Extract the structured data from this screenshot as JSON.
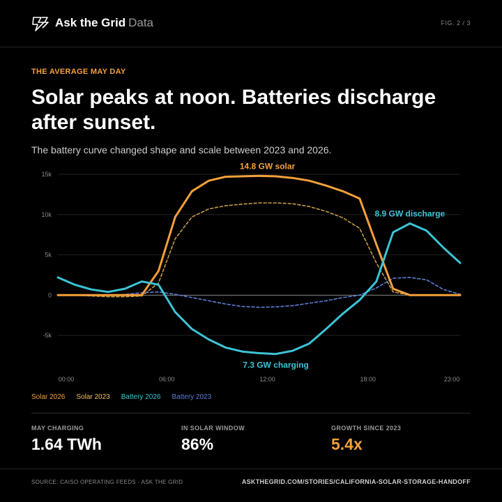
{
  "header": {
    "brand": "Ask the Grid",
    "brand_sub": "Data",
    "fig": "FIG. 2 / 3",
    "logo_icon": "lightning-bolt-icon"
  },
  "kicker": "THE AVERAGE MAY DAY",
  "title": "Solar peaks at noon. Batteries discharge after sunset.",
  "subtitle": "The battery curve changed shape and scale between 2023 and 2026.",
  "chart_data": {
    "type": "line",
    "xlabel": "",
    "ylabel": "",
    "x_ticks": [
      "00:00",
      "06:00",
      "12:00",
      "18:00",
      "23:00"
    ],
    "x_tick_hours": [
      0,
      6,
      12,
      18,
      23
    ],
    "y_ticks": [
      "15k",
      "10k",
      "5k",
      "0",
      "-5k"
    ],
    "y_tick_values": [
      15000,
      10000,
      5000,
      0,
      -5000
    ],
    "xlim": [
      0,
      23
    ],
    "ylim": [
      -7500,
      15000
    ],
    "grid": true,
    "hours": [
      -0.5,
      0.5,
      1.5,
      2.5,
      3.5,
      4.5,
      5.5,
      6.5,
      7.5,
      8.5,
      9.5,
      10.5,
      11.5,
      12.5,
      13.5,
      14.5,
      15.5,
      16.5,
      17.5,
      18.5,
      19.5,
      20.5,
      21.5,
      22.5,
      23.5
    ],
    "series": [
      {
        "name": "Solar 2026",
        "color": "#f5a03a",
        "style": "solid",
        "values": [
          0,
          0,
          0,
          0,
          0,
          0,
          3000,
          9700,
          12900,
          14200,
          14700,
          14750,
          14800,
          14750,
          14550,
          14200,
          13600,
          12900,
          12000,
          6300,
          800,
          0,
          0,
          0,
          0
        ]
      },
      {
        "name": "Solar 2023",
        "color": "#c49a4a",
        "style": "dashed",
        "values": [
          0,
          0,
          -100,
          -200,
          -200,
          -100,
          1500,
          7000,
          9700,
          10700,
          11100,
          11300,
          11450,
          11450,
          11350,
          11000,
          10400,
          9600,
          8300,
          4000,
          400,
          0,
          0,
          0,
          0
        ]
      },
      {
        "name": "Battery 2026",
        "color": "#3cc4d6",
        "style": "solid",
        "values": [
          2200,
          1300,
          700,
          400,
          800,
          1700,
          1300,
          -2100,
          -4200,
          -5500,
          -6500,
          -7000,
          -7200,
          -7300,
          -6900,
          -6000,
          -4200,
          -2300,
          -600,
          1700,
          7800,
          8900,
          8000,
          5900,
          4000
        ]
      },
      {
        "name": "Battery 2023",
        "color": "#5d7fd6",
        "style": "dashed",
        "values": [
          0,
          0,
          0,
          0,
          100,
          300,
          400,
          100,
          -300,
          -700,
          -1100,
          -1400,
          -1500,
          -1450,
          -1300,
          -1000,
          -700,
          -300,
          0,
          900,
          2100,
          2200,
          1900,
          700,
          100
        ]
      }
    ],
    "annotations": [
      {
        "text": "14.8 GW solar",
        "color": "#f5a03a",
        "anchor_hour": 12,
        "anchor_value": 14800,
        "placement": "above"
      },
      {
        "text": "8.9 GW discharge",
        "color": "#3cc4d6",
        "anchor_hour": 20.5,
        "anchor_value": 8900,
        "placement": "above"
      },
      {
        "text": "7.3 GW charging",
        "color": "#3cc4d6",
        "anchor_hour": 12.5,
        "anchor_value": -7300,
        "placement": "below"
      }
    ]
  },
  "legend": [
    {
      "label": "Solar 2026",
      "color": "#f5a03a"
    },
    {
      "label": "Solar 2023",
      "color": "#f0c060"
    },
    {
      "label": "Battery 2026",
      "color": "#3cc4d6"
    },
    {
      "label": "Battery 2023",
      "color": "#5d7fd6"
    }
  ],
  "stats": [
    {
      "label": "MAY CHARGING",
      "value": "1.64 TWh"
    },
    {
      "label": "IN SOLAR WINDOW",
      "value": "86%"
    },
    {
      "label": "GROWTH SINCE 2023",
      "value": "5.4x"
    }
  ],
  "footer": {
    "source": "SOURCE: CAISO OPERATING FEEDS · ASK THE GRID",
    "url": "ASKTHEGRID.COM/STORIES/CALIFORNIA-SOLAR-STORAGE-HANDOFF"
  }
}
